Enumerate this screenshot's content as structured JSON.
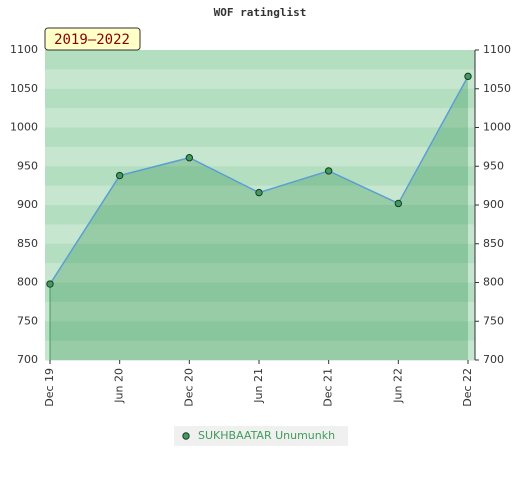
{
  "chart_data": {
    "type": "area",
    "title": "WOF ratinglist",
    "annotation": "2019–2022",
    "categories": [
      "Dec 19",
      "Jun 20",
      "Dec 20",
      "Jun 21",
      "Dec 21",
      "Jun 22",
      "Dec 22"
    ],
    "series": [
      {
        "name": "SUKHBAATAR Unumunkh",
        "color": "#3f9c5c",
        "values": [
          798,
          938,
          961,
          916,
          944,
          902,
          1066
        ]
      }
    ],
    "ylim": [
      700,
      1100
    ],
    "yticks": [
      700,
      750,
      800,
      850,
      900,
      950,
      1000,
      1050,
      1100
    ]
  }
}
